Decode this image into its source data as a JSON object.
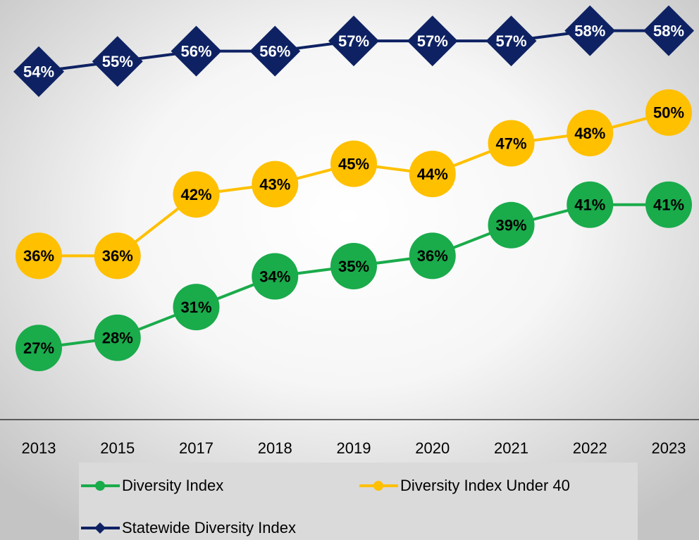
{
  "chart_data": {
    "type": "line",
    "categories": [
      "2013",
      "2015",
      "2017",
      "2018",
      "2019",
      "2020",
      "2021",
      "2022",
      "2023"
    ],
    "series": [
      {
        "name": "Diversity Index",
        "color": "#1aab4b",
        "marker": "circle",
        "values": [
          27,
          28,
          31,
          34,
          35,
          36,
          39,
          41,
          41
        ],
        "value_labels": [
          "27%",
          "28%",
          "31%",
          "34%",
          "35%",
          "36%",
          "39%",
          "41%",
          "41%"
        ]
      },
      {
        "name": "Diversity Index Under 40",
        "color": "#ffc000",
        "marker": "circle",
        "values": [
          36,
          36,
          42,
          43,
          45,
          44,
          47,
          48,
          50
        ],
        "value_labels": [
          "36%",
          "36%",
          "42%",
          "43%",
          "45%",
          "44%",
          "47%",
          "48%",
          "50%"
        ]
      },
      {
        "name": "Statewide Diversity Index",
        "color": "#0e2263",
        "marker": "diamond",
        "values": [
          54,
          55,
          56,
          56,
          57,
          57,
          57,
          58,
          58
        ],
        "value_labels": [
          "54%",
          "55%",
          "56%",
          "56%",
          "57%",
          "57%",
          "57%",
          "58%",
          "58%"
        ]
      }
    ],
    "ylim": [
      20,
      61
    ]
  }
}
